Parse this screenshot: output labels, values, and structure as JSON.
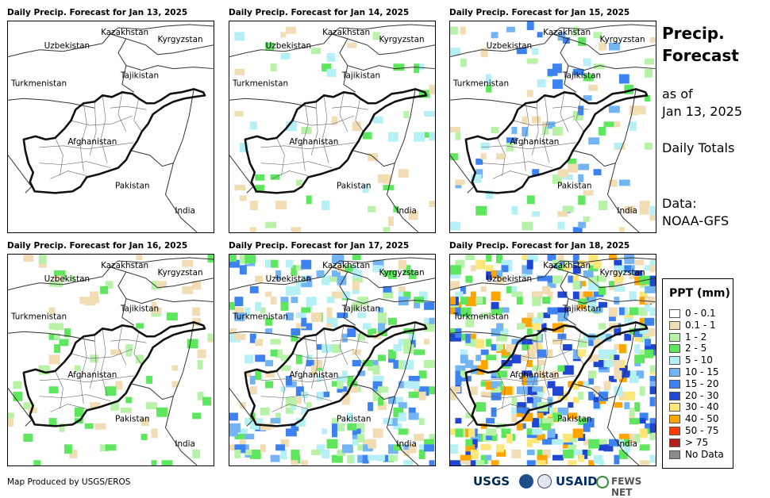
{
  "panels": [
    {
      "title": "Daily Precip. Forecast for Jan 13, 2025",
      "intensity": 0
    },
    {
      "title": "Daily Precip. Forecast for Jan 14, 2025",
      "intensity": 1
    },
    {
      "title": "Daily Precip. Forecast for Jan 15, 2025",
      "intensity": 2
    },
    {
      "title": "Daily Precip. Forecast for Jan 16, 2025",
      "intensity": 3
    },
    {
      "title": "Daily Precip. Forecast for Jan 17, 2025",
      "intensity": 4
    },
    {
      "title": "Daily Precip. Forecast for Jan 18, 2025",
      "intensity": 5
    }
  ],
  "map_labels": {
    "kazakhstan": "Kazakhstan",
    "uzbekistan": "Uzbekistan",
    "kyrgyzstan": "Kyrgyzstan",
    "tajikistan": "Tajikistan",
    "turkmenistan": "Turkmenistan",
    "afghanistan": "Afghanistan",
    "pakistan": "Pakistan",
    "india": "India"
  },
  "side": {
    "title_line1": "Precip.",
    "title_line2": "Forecast",
    "asof_line1": "as of",
    "asof_line2": "Jan 13, 2025",
    "totals": "Daily Totals",
    "data_line1": "Data:",
    "data_line2": "NOAA-GFS"
  },
  "legend": {
    "title": "PPT (mm)",
    "items": [
      {
        "label": "0 - 0.1",
        "color": "#ffffff"
      },
      {
        "label": "0.1 - 1",
        "color": "#f2dcb3"
      },
      {
        "label": "1 - 2",
        "color": "#b8f2a8"
      },
      {
        "label": "2 - 5",
        "color": "#5ee65e"
      },
      {
        "label": "5 - 10",
        "color": "#b4f0f5"
      },
      {
        "label": "10 - 15",
        "color": "#73b4f5"
      },
      {
        "label": "15 - 20",
        "color": "#3c82f0"
      },
      {
        "label": "20 - 30",
        "color": "#1e46d2"
      },
      {
        "label": "30 - 40",
        "color": "#ffe678"
      },
      {
        "label": "40 - 50",
        "color": "#ffa500"
      },
      {
        "label": "50 - 75",
        "color": "#ff3c00"
      },
      {
        "label": "> 75",
        "color": "#b41e1e"
      },
      {
        "label": "No Data",
        "color": "#8c8c8c"
      }
    ]
  },
  "credit": "Map Produced by USGS/EROS",
  "logos": {
    "usgs": "USGS",
    "usaid": "USAID",
    "fews": "FEWS NET"
  }
}
